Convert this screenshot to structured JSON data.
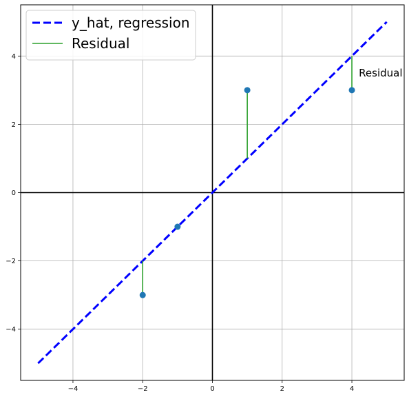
{
  "chart_data": {
    "type": "scatter",
    "title": "",
    "xlabel": "",
    "ylabel": "",
    "xlim": [
      -5.5,
      5.5
    ],
    "ylim": [
      -5.5,
      5.5
    ],
    "x_ticks": [
      -4,
      -2,
      0,
      2,
      4
    ],
    "y_ticks": [
      -4,
      -2,
      0,
      2,
      4
    ],
    "x_tick_labels": [
      "−4",
      "−2",
      "0",
      "2",
      "4"
    ],
    "y_tick_labels": [
      "−4",
      "−2",
      "0",
      "2",
      "4"
    ],
    "grid": true,
    "legend_position": "top-left",
    "series": [
      {
        "name": "y_hat, regression",
        "kind": "line",
        "style": "dashed",
        "color": "#0000ff",
        "x": [
          -5,
          5
        ],
        "y": [
          -5,
          5
        ]
      },
      {
        "name": "Residual",
        "kind": "vertical-segments",
        "color": "#2ca02c",
        "segments": [
          {
            "x": -2,
            "y_from": -2,
            "y_to": -3
          },
          {
            "x": 1,
            "y_from": 1,
            "y_to": 3
          },
          {
            "x": 4,
            "y_from": 4,
            "y_to": 3
          }
        ]
      },
      {
        "kind": "points",
        "color": "#1f77b4",
        "x": [
          -2,
          -1,
          1,
          4
        ],
        "y": [
          -3,
          -1,
          3,
          3
        ]
      }
    ],
    "annotations": [
      {
        "text": "Residual",
        "x": 4.2,
        "y": 3.5
      }
    ]
  }
}
